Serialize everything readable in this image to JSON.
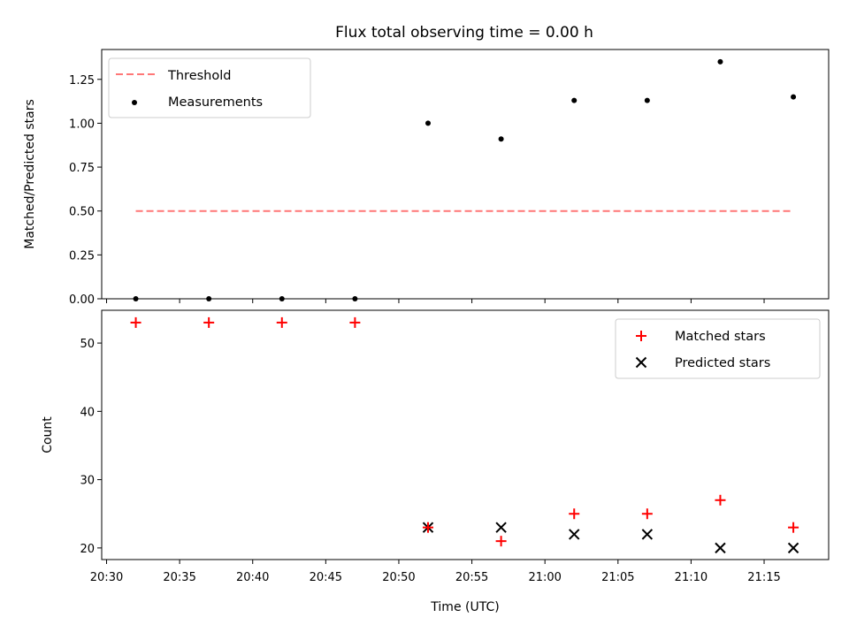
{
  "title": "Flux total observing time = 0.00 h",
  "colors": {
    "threshold": "#ff7777",
    "measurement": "#000000",
    "matched": "#ff0000",
    "predicted": "#000000"
  },
  "chart_data": [
    {
      "type": "scatter",
      "title": "Flux total observing time = 0.00 h",
      "xlabel": "",
      "ylabel": "Matched/Predicted stars",
      "ylim": [
        0,
        1.42
      ],
      "yticks": [
        "0.00",
        "0.25",
        "0.50",
        "0.75",
        "1.00",
        "1.25"
      ],
      "legend_position": "upper-left",
      "series": [
        {
          "name": "Threshold",
          "style": "dashed-line",
          "x": [
            "20:32",
            "21:17"
          ],
          "y": [
            0.5,
            0.5
          ]
        },
        {
          "name": "Measurements",
          "style": "dot",
          "x": [
            "20:32",
            "20:37",
            "20:42",
            "20:47",
            "20:52",
            "20:57",
            "21:02",
            "21:07",
            "21:12",
            "21:17"
          ],
          "y": [
            0.0,
            0.0,
            0.0,
            0.0,
            1.0,
            0.91,
            1.13,
            1.13,
            1.35,
            1.15
          ]
        }
      ]
    },
    {
      "type": "scatter",
      "xlabel": "Time (UTC)",
      "ylabel": "Count",
      "ylim": [
        18.3,
        54.8
      ],
      "yticks": [
        "20",
        "30",
        "40",
        "50"
      ],
      "xlim": [
        "20:29:40",
        "21:19:25"
      ],
      "xticks": [
        "20:30",
        "20:35",
        "20:40",
        "20:45",
        "20:50",
        "20:55",
        "21:00",
        "21:05",
        "21:10",
        "21:15"
      ],
      "legend_position": "upper-right",
      "series": [
        {
          "name": "Matched stars",
          "style": "plus",
          "x": [
            "20:32",
            "20:37",
            "20:42",
            "20:47",
            "20:52",
            "20:57",
            "21:02",
            "21:07",
            "21:12",
            "21:17"
          ],
          "y": [
            53,
            53,
            53,
            53,
            23,
            21,
            25,
            25,
            27,
            23
          ]
        },
        {
          "name": "Predicted stars",
          "style": "x",
          "x": [
            "20:32",
            "20:37",
            "20:42",
            "20:47",
            "20:52",
            "20:57",
            "21:02",
            "21:07",
            "21:12",
            "21:17"
          ],
          "y": [
            null,
            null,
            null,
            null,
            23,
            23,
            22,
            22,
            20,
            20
          ]
        }
      ]
    }
  ]
}
